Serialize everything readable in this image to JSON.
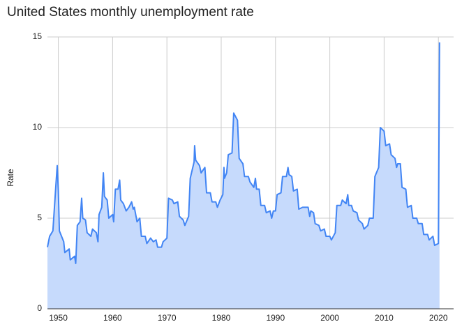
{
  "chart_data": {
    "type": "area",
    "title": "United States monthly unemployment rate",
    "y_label": "Rate",
    "color": "#4285f4",
    "fill": "#c6dafc",
    "grid": true,
    "xlim": [
      1948,
      2022.8
    ],
    "xticks": [
      1950,
      1960,
      1970,
      1980,
      1990,
      2000,
      2010,
      2020
    ],
    "ylim": [
      0,
      15
    ],
    "yticks": [
      0,
      5,
      10,
      15
    ],
    "x": [
      1948.0,
      1948.4,
      1949.0,
      1949.5,
      1949.8,
      1950.0,
      1950.2,
      1951.0,
      1951.2,
      1952.0,
      1952.2,
      1953.0,
      1953.2,
      1953.5,
      1954.0,
      1954.3,
      1954.5,
      1955.0,
      1955.3,
      1956.0,
      1956.3,
      1957.0,
      1957.3,
      1957.5,
      1958.0,
      1958.3,
      1958.5,
      1959.0,
      1959.3,
      1960.0,
      1960.2,
      1960.5,
      1961.0,
      1961.3,
      1961.5,
      1962.0,
      1962.5,
      1963.0,
      1963.5,
      1963.8,
      1964.0,
      1964.5,
      1965.0,
      1965.3,
      1966.0,
      1966.3,
      1967.0,
      1967.5,
      1968.0,
      1968.3,
      1969.0,
      1969.3,
      1970.0,
      1970.3,
      1971.0,
      1971.3,
      1972.0,
      1972.3,
      1973.0,
      1973.3,
      1974.0,
      1974.3,
      1975.0,
      1975.1,
      1975.3,
      1976.0,
      1976.3,
      1977.0,
      1977.3,
      1978.0,
      1978.3,
      1979.0,
      1979.3,
      1979.8,
      1980.3,
      1980.5,
      1980.6,
      1981.0,
      1981.3,
      1982.0,
      1982.3,
      1983.0,
      1983.3,
      1984.0,
      1984.3,
      1985.0,
      1985.3,
      1986.0,
      1986.3,
      1986.5,
      1987.0,
      1987.3,
      1988.0,
      1988.3,
      1989.0,
      1989.3,
      1989.6,
      1990.0,
      1990.3,
      1991.0,
      1991.3,
      1992.0,
      1992.3,
      1992.5,
      1993.0,
      1993.3,
      1994.0,
      1994.3,
      1995.0,
      1995.3,
      1996.0,
      1996.3,
      1996.5,
      1997.0,
      1997.3,
      1998.0,
      1998.3,
      1999.0,
      1999.3,
      2000.0,
      2000.3,
      2001.0,
      2001.3,
      2002.0,
      2002.3,
      2003.0,
      2003.3,
      2003.5,
      2004.0,
      2004.3,
      2005.0,
      2005.3,
      2006.0,
      2006.3,
      2007.0,
      2007.3,
      2008.0,
      2008.3,
      2009.0,
      2009.3,
      2010.0,
      2010.3,
      2011.0,
      2011.3,
      2012.0,
      2012.3,
      2012.5,
      2013.0,
      2013.3,
      2014.0,
      2014.3,
      2015.0,
      2015.3,
      2016.0,
      2016.3,
      2017.0,
      2017.3,
      2018.0,
      2018.3,
      2019.0,
      2019.3,
      2020.0,
      2020.2
    ],
    "values": [
      3.4,
      4.0,
      4.3,
      6.6,
      7.9,
      6.5,
      4.3,
      3.7,
      3.1,
      3.3,
      2.7,
      2.9,
      2.5,
      4.6,
      4.8,
      6.1,
      5.0,
      4.9,
      4.2,
      4.0,
      4.4,
      4.2,
      3.7,
      5.2,
      5.6,
      7.5,
      6.2,
      6.0,
      5.0,
      5.2,
      4.8,
      6.6,
      6.6,
      7.1,
      6.0,
      5.8,
      5.4,
      5.6,
      5.9,
      5.5,
      5.6,
      4.8,
      5.0,
      4.0,
      4.0,
      3.6,
      3.9,
      3.7,
      3.8,
      3.4,
      3.4,
      3.7,
      3.9,
      6.1,
      6.0,
      5.8,
      5.9,
      5.1,
      4.9,
      4.6,
      5.1,
      7.2,
      8.1,
      9.0,
      8.2,
      7.9,
      7.5,
      7.8,
      6.4,
      6.4,
      5.9,
      5.9,
      5.6,
      6.0,
      6.3,
      7.8,
      7.2,
      7.5,
      8.5,
      8.6,
      10.8,
      10.4,
      8.3,
      8.0,
      7.3,
      7.3,
      7.0,
      6.7,
      7.2,
      6.6,
      6.6,
      5.7,
      5.7,
      5.3,
      5.4,
      5.0,
      5.4,
      5.4,
      6.3,
      6.4,
      7.3,
      7.3,
      7.8,
      7.4,
      7.3,
      6.5,
      6.6,
      5.5,
      5.6,
      5.6,
      5.6,
      5.1,
      5.4,
      5.3,
      4.7,
      4.6,
      4.3,
      4.4,
      4.0,
      4.0,
      3.8,
      4.2,
      5.7,
      5.7,
      6.0,
      5.8,
      6.3,
      5.7,
      5.7,
      5.4,
      5.3,
      4.9,
      4.7,
      4.4,
      4.6,
      5.0,
      5.0,
      7.3,
      7.8,
      10.0,
      9.8,
      9.0,
      9.1,
      8.5,
      8.3,
      7.8,
      8.0,
      8.0,
      6.7,
      6.6,
      5.6,
      5.7,
      5.0,
      5.0,
      4.7,
      4.7,
      4.1,
      4.1,
      3.8,
      4.0,
      3.5,
      3.6,
      14.7
    ]
  }
}
